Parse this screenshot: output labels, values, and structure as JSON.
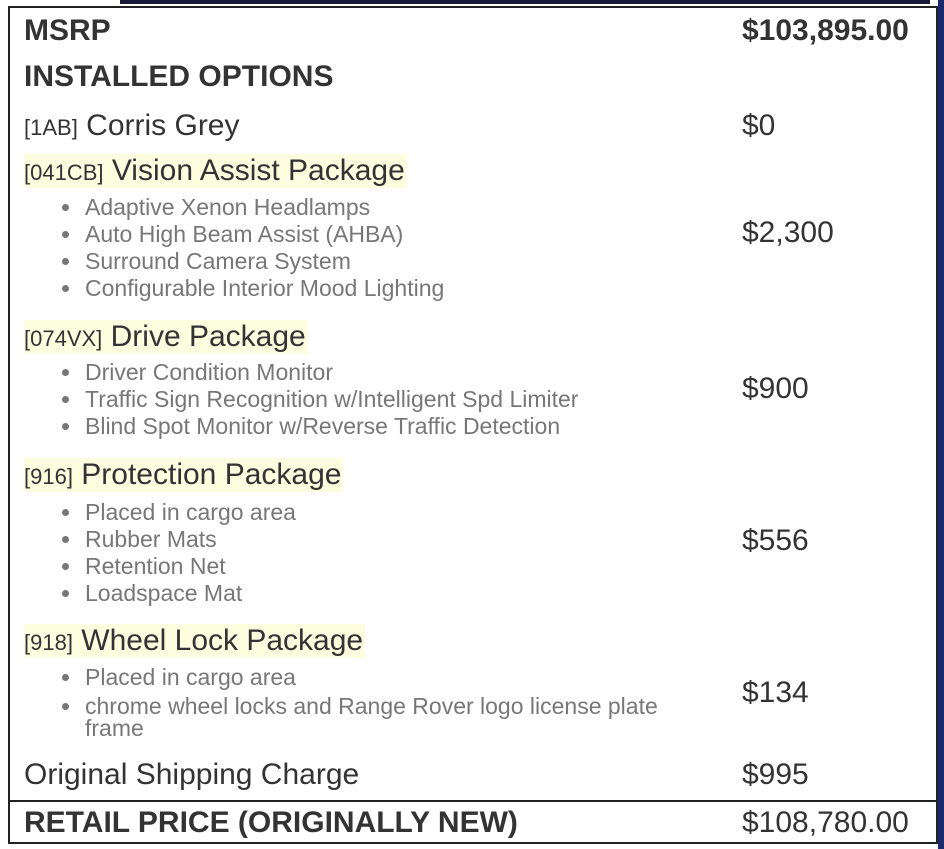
{
  "msrp": {
    "label": "MSRP",
    "price": "$103,895.00"
  },
  "installed_options_heading": "INSTALLED OPTIONS",
  "options": [
    {
      "code": "[1AB]",
      "name": "Corris Grey",
      "price": "$0",
      "items": []
    },
    {
      "code": "[041CB]",
      "name": "Vision Assist Package",
      "price": "$2,300",
      "items": [
        "Adaptive Xenon Headlamps",
        "Auto High Beam Assist (AHBA)",
        "Surround Camera System",
        "Configurable Interior Mood Lighting"
      ]
    },
    {
      "code": "[074VX]",
      "name": "Drive Package",
      "price": "$900",
      "items": [
        "Driver Condition Monitor",
        "Traffic Sign Recognition w/Intelligent Spd Limiter",
        "Blind Spot Monitor w/Reverse Traffic Detection"
      ]
    },
    {
      "code": "[916]",
      "name": "Protection Package",
      "price": "$556",
      "items": [
        "Placed in cargo area",
        "Rubber Mats",
        "Retention Net",
        "Loadspace Mat"
      ]
    },
    {
      "code": "[918]",
      "name": "Wheel Lock Package",
      "price": "$134",
      "items": [
        "Placed in cargo area",
        "chrome wheel locks and Range Rover logo license plate frame"
      ]
    }
  ],
  "shipping": {
    "label": "Original Shipping Charge",
    "price": "$995"
  },
  "retail": {
    "label": "RETAIL PRICE (ORIGINALLY NEW)",
    "price": "$108,780.00"
  },
  "colors": {
    "highlight": "#fdfde0",
    "bullet_text": "#777777"
  }
}
